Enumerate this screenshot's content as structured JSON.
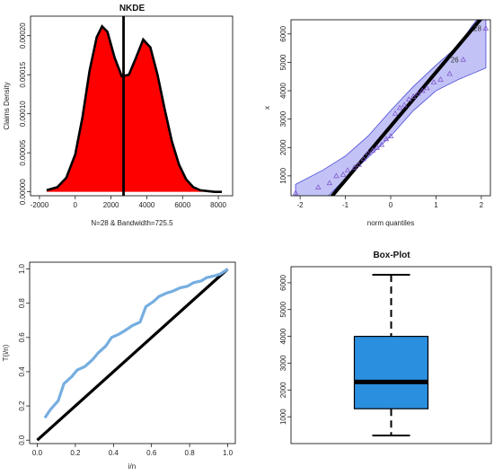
{
  "chart_data": [
    {
      "type": "area",
      "title": "NKDE",
      "xlabel": "N=28 & Bandwidth=725.5",
      "ylabel": "Claims Density",
      "xlim": [
        -2500,
        8800
      ],
      "ylim": [
        -5e-06,
        0.000225
      ],
      "xticks": [
        -2000,
        0,
        2000,
        4000,
        6000,
        8000
      ],
      "yticks": [
        0,
        5e-05,
        0.0001,
        0.00015,
        0.0002
      ],
      "ytick_labels": [
        "0.00000",
        "0.00005",
        "0.00010",
        "0.00015",
        "0.00020"
      ],
      "x": [
        -1600,
        -1000,
        -500,
        0,
        400,
        800,
        1200,
        1500,
        1800,
        2200,
        2600,
        3000,
        3400,
        3800,
        4200,
        4600,
        5000,
        5400,
        5800,
        6200,
        6600,
        7000,
        7400,
        7800,
        8200
      ],
      "y": [
        2e-06,
        6e-06,
        1.8e-05,
        4.8e-05,
        9.5e-05,
        0.000155,
        0.000198,
        0.000212,
        0.000205,
        0.000172,
        0.000148,
        0.00015,
        0.000172,
        0.000195,
        0.000185,
        0.00015,
        0.000106,
        6.5e-05,
        3.5e-05,
        1.6e-05,
        6e-06,
        2e-06,
        1e-06,
        0.0,
        0.0
      ],
      "vline_x": 2700,
      "fill_color": "#ff0000",
      "line_color": "#000000"
    },
    {
      "type": "scatter",
      "title": "",
      "xlabel": "norm quantiles",
      "ylabel": "x",
      "xlim": [
        -2.2,
        2.2
      ],
      "ylim": [
        300,
        6500
      ],
      "xticks": [
        -2,
        -1,
        0,
        1,
        2
      ],
      "yticks": [
        1000,
        2000,
        3000,
        4000,
        5000,
        6000
      ],
      "points_x": [
        -2.1,
        -1.6,
        -1.35,
        -1.2,
        -1.05,
        -0.95,
        -0.8,
        -0.7,
        -0.6,
        -0.5,
        -0.4,
        -0.3,
        -0.2,
        -0.1,
        0.0,
        0.1,
        0.2,
        0.3,
        0.4,
        0.5,
        0.6,
        0.7,
        0.8,
        0.95,
        1.1,
        1.3,
        1.6,
        2.1
      ],
      "points_y": [
        400,
        600,
        750,
        1000,
        1050,
        1200,
        1300,
        1400,
        1600,
        1800,
        1900,
        2000,
        2100,
        2300,
        2400,
        3200,
        3400,
        3500,
        3700,
        3800,
        3900,
        4000,
        4100,
        4300,
        4400,
        4600,
        5100,
        6200
      ],
      "fit_line": {
        "intercept": 2750,
        "slope": 1900
      },
      "band_x": [
        -2.1,
        -1.5,
        -1.0,
        -0.5,
        0.0,
        0.5,
        1.0,
        1.5,
        1.8,
        2.1
      ],
      "band_lower": [
        -600,
        100,
        900,
        1650,
        2400,
        3300,
        4000,
        4400,
        4600,
        4800
      ],
      "band_upper": [
        700,
        1200,
        1700,
        2400,
        3300,
        4150,
        4900,
        5600,
        6300,
        6900
      ],
      "labels": [
        {
          "text": "28",
          "x": 2.1,
          "y": 6200
        },
        {
          "text": "26",
          "x": 1.6,
          "y": 5100
        }
      ],
      "band_color": "#b7b7f5",
      "line_color": "#000000"
    },
    {
      "type": "line",
      "title": "",
      "xlabel": "i/n",
      "ylabel": "T(i/n)",
      "xlim": [
        -0.04,
        1.04
      ],
      "ylim": [
        -0.02,
        1.04
      ],
      "xticks": [
        0.0,
        0.2,
        0.4,
        0.6,
        0.8,
        1.0
      ],
      "yticks": [
        0.0,
        0.2,
        0.4,
        0.6,
        0.8,
        1.0
      ],
      "ttt_x": [
        0.04,
        0.07,
        0.11,
        0.14,
        0.18,
        0.21,
        0.25,
        0.29,
        0.32,
        0.36,
        0.39,
        0.43,
        0.46,
        0.5,
        0.54,
        0.57,
        0.61,
        0.64,
        0.68,
        0.71,
        0.75,
        0.79,
        0.82,
        0.86,
        0.89,
        0.93,
        0.96,
        1.0
      ],
      "ttt_y": [
        0.13,
        0.18,
        0.23,
        0.33,
        0.37,
        0.41,
        0.43,
        0.47,
        0.51,
        0.55,
        0.6,
        0.62,
        0.64,
        0.67,
        0.69,
        0.78,
        0.81,
        0.84,
        0.86,
        0.87,
        0.89,
        0.9,
        0.92,
        0.93,
        0.95,
        0.96,
        0.97,
        1.0
      ],
      "diagonal": [
        [
          0,
          0
        ],
        [
          1,
          1
        ]
      ],
      "ttt_color": "#76aee0",
      "diag_color": "#000000"
    },
    {
      "type": "box",
      "title": "Box-Plot",
      "xlabel": "",
      "ylabel": "",
      "ylim": [
        0,
        6600
      ],
      "yticks": [
        1000,
        2000,
        3000,
        4000,
        5000,
        6000
      ],
      "whisker_low": 300,
      "q1": 1300,
      "median": 2300,
      "q3": 4000,
      "whisker_high": 6300,
      "box_color": "#2b8fe0"
    }
  ]
}
